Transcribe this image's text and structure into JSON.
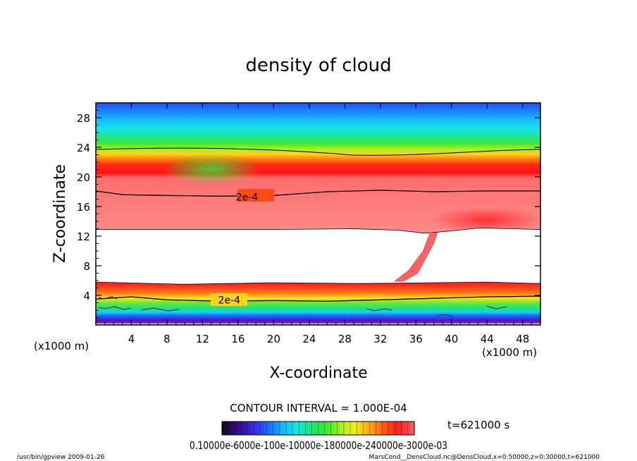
{
  "chart_data": {
    "type": "heatmap",
    "title": "density of cloud",
    "xlabel": "X-coordinate",
    "ylabel": "Z-coordinate",
    "x_unit_left": "(x1000 m)",
    "x_unit_right": "(x1000 m)",
    "xlim": [
      0,
      50
    ],
    "ylim": [
      0,
      30
    ],
    "x_ticks": [
      4,
      8,
      12,
      16,
      20,
      24,
      28,
      32,
      36,
      40,
      44,
      48
    ],
    "y_ticks": [
      4,
      8,
      12,
      16,
      20,
      24,
      28
    ],
    "contour_interval_text": "CONTOUR INTERVAL = 1.000E-04",
    "contour_labels": [
      {
        "text": "2e-4",
        "x": 17.0,
        "z": 17.3
      },
      {
        "text": "2e-4",
        "x": 15.0,
        "z": 3.4
      }
    ],
    "contour_upper": [
      [
        0,
        18.1
      ],
      [
        3,
        17.6
      ],
      [
        8,
        17.5
      ],
      [
        14,
        17.4
      ],
      [
        20,
        17.5
      ],
      [
        26,
        18.0
      ],
      [
        32,
        18.2
      ],
      [
        38,
        18.0
      ],
      [
        44,
        18.1
      ],
      [
        50,
        18.1
      ]
    ],
    "contour_lower": [
      [
        0,
        3.5
      ],
      [
        4,
        3.8
      ],
      [
        8,
        3.4
      ],
      [
        14,
        3.2
      ],
      [
        20,
        3.3
      ],
      [
        26,
        3.2
      ],
      [
        32,
        3.4
      ],
      [
        38,
        3.6
      ],
      [
        44,
        3.8
      ],
      [
        50,
        3.9
      ]
    ],
    "gap_top": [
      [
        0,
        12.9
      ],
      [
        10,
        12.9
      ],
      [
        20,
        12.9
      ],
      [
        29,
        13.0
      ],
      [
        34,
        12.8
      ],
      [
        37,
        12.4
      ],
      [
        40,
        12.7
      ],
      [
        43,
        13.1
      ],
      [
        47,
        13.0
      ],
      [
        50,
        12.9
      ]
    ],
    "plume": [
      [
        37.6,
        12.5
      ],
      [
        38.4,
        12.4
      ],
      [
        38.0,
        11.0
      ],
      [
        36.2,
        7.0
      ],
      [
        34.6,
        5.9
      ],
      [
        33.6,
        5.9
      ],
      [
        35.2,
        7.4
      ],
      [
        36.8,
        10.0
      ]
    ],
    "color_scale": {
      "min": 0.0001,
      "max": 0.003,
      "tick_labels_text": "0.10000e-6000e-100e-10000e-180000e-240000e-3000e-03",
      "colors": [
        "#140a2a",
        "#3a0a8a",
        "#3c28d8",
        "#1e64ff",
        "#19b3ff",
        "#14e6e6",
        "#1ee678",
        "#32e632",
        "#a0f01e",
        "#f0f01e",
        "#ffaa14",
        "#ff5a14",
        "#ff1e1e",
        "#ff5a5a"
      ]
    },
    "time_label": "t=621000 s"
  },
  "footer": {
    "left": "/usr/bin/gpview  2009-01-26",
    "right": "MarsCond__DensCloud.nc@DensCloud,x=0:50000,z=0:30000,t=621000"
  }
}
